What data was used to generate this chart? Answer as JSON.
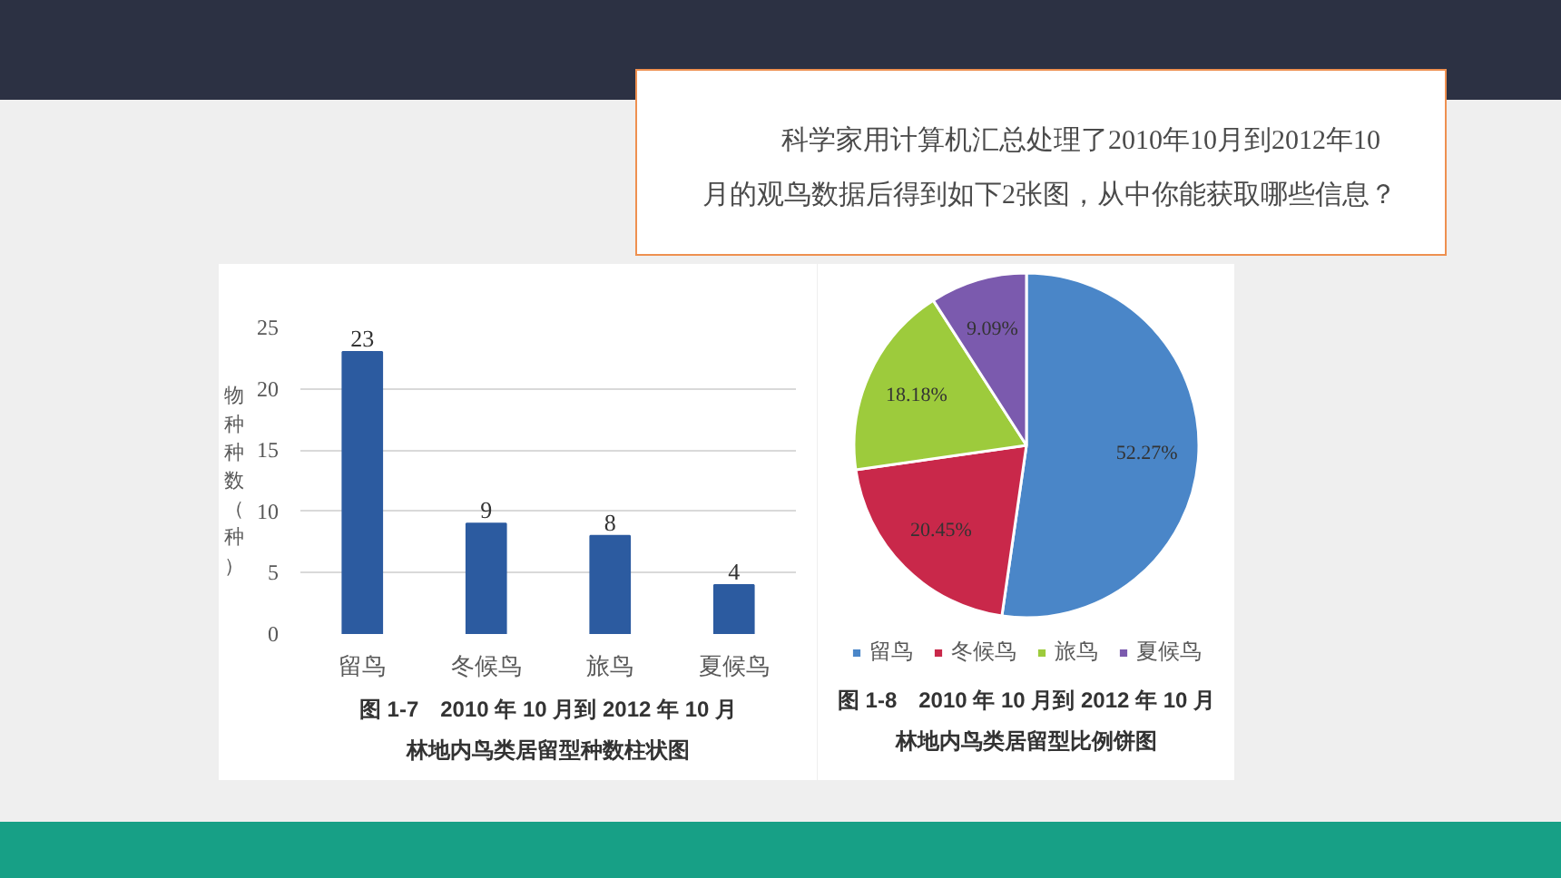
{
  "chart_data": [
    {
      "type": "other",
      "annotations": [
        "科学家用计算机汇总处理了2010年10月到2012年10月的观鸟数据后得到如下2张图，从中你能获取哪些信息？"
      ]
    },
    {
      "type": "bar",
      "title": "图 1-7　2010 年 10 月到 2012 年 10 月",
      "subtitle": "林地内鸟类居留型种数柱状图",
      "ylabel": "物种种数（种）",
      "categories": [
        "留鸟",
        "冬候鸟",
        "旅鸟",
        "夏候鸟"
      ],
      "values": [
        23,
        9,
        8,
        4
      ],
      "color": "#2c5ba0",
      "ylim": [
        0,
        25
      ],
      "yticks": [
        0,
        5,
        10,
        15,
        20,
        25
      ],
      "grid": "y",
      "data_labels": true
    },
    {
      "type": "pie",
      "title": "图 1-8　2010 年 10 月到 2012 年 10 月",
      "subtitle": "林地内鸟类居留型比例饼图",
      "categories": [
        "留鸟",
        "冬候鸟",
        "旅鸟",
        "夏候鸟"
      ],
      "values": [
        52.27,
        20.45,
        18.18,
        9.09
      ],
      "colors": [
        "#4a86c8",
        "#c9284a",
        "#9dcb3c",
        "#7b5aae"
      ],
      "value_labels": [
        "52.27%",
        "20.45%",
        "18.18%",
        "9.09%"
      ],
      "legend": "bottom"
    }
  ]
}
